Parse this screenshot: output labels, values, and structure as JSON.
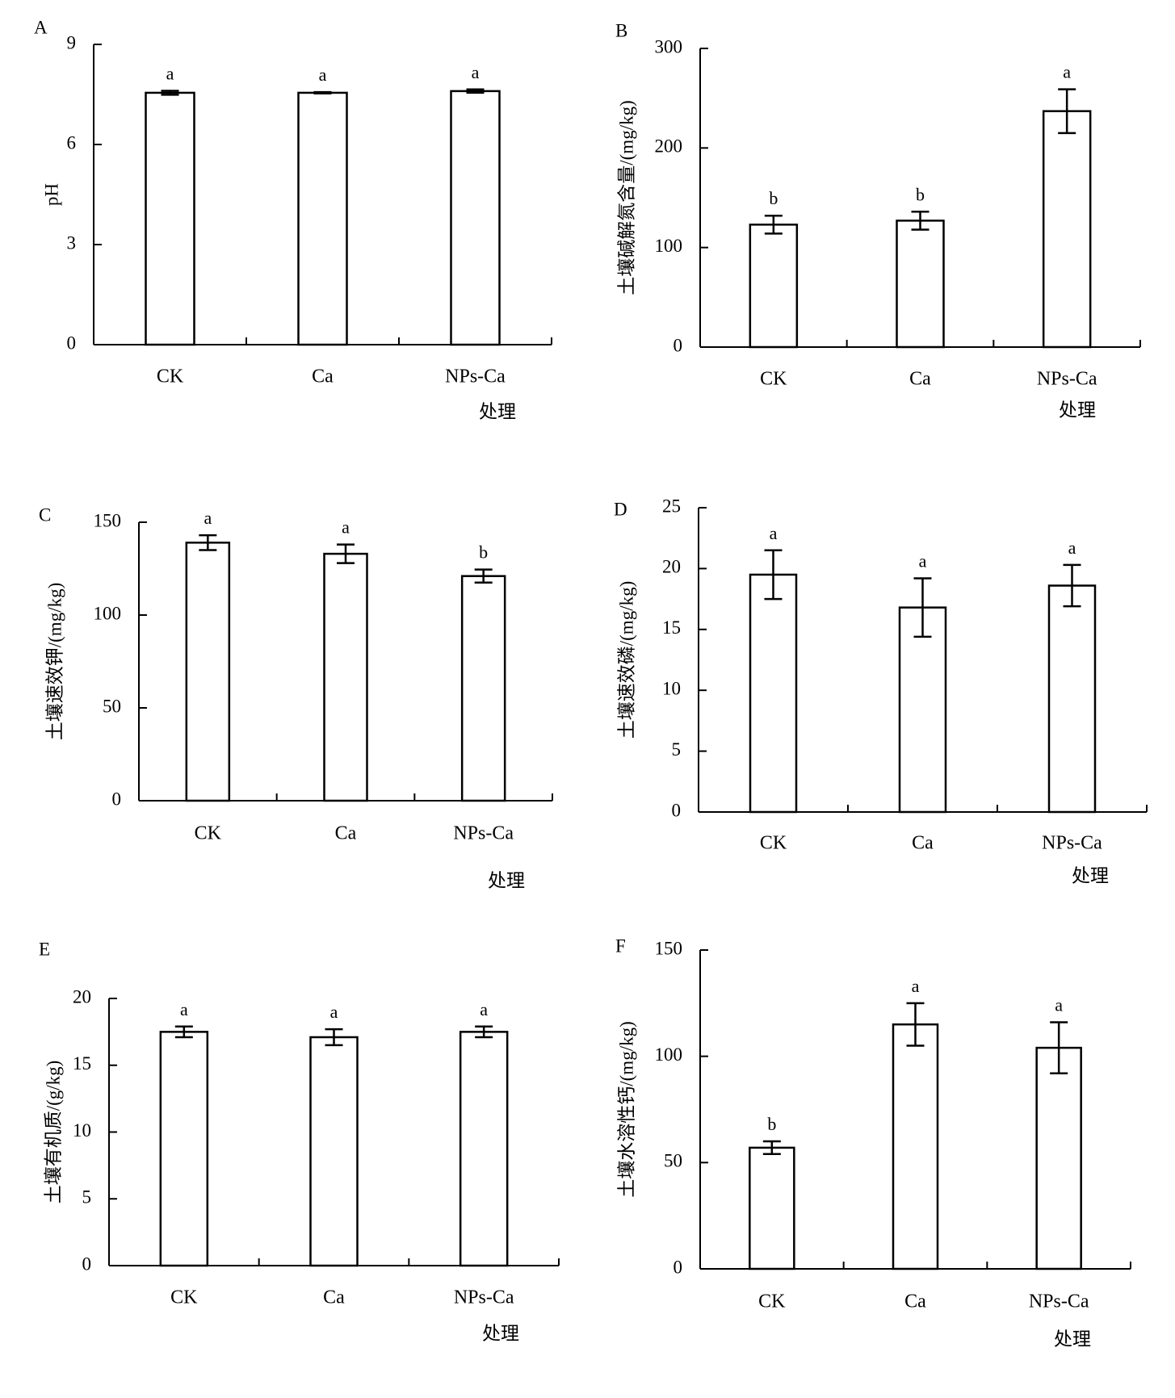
{
  "chart_data": [
    {
      "panel": "A",
      "type": "bar",
      "categories": [
        "CK",
        "Ca",
        "NPs-Ca"
      ],
      "values": [
        7.55,
        7.55,
        7.6
      ],
      "errors": [
        0.06,
        0.02,
        0.05
      ],
      "significance": [
        "a",
        "a",
        "a"
      ],
      "ylabel": "pH",
      "xlabel": "处理",
      "ylim": [
        0,
        9
      ],
      "yticks": [
        0,
        3,
        6,
        9
      ]
    },
    {
      "panel": "B",
      "type": "bar",
      "categories": [
        "CK",
        "Ca",
        "NPs-Ca"
      ],
      "values": [
        123,
        127,
        237
      ],
      "errors": [
        9,
        9,
        22
      ],
      "significance": [
        "b",
        "b",
        "a"
      ],
      "ylabel": "土壤碱解氮含量/(mg/kg)",
      "xlabel": "处理",
      "ylim": [
        0,
        300
      ],
      "yticks": [
        0,
        100,
        200,
        300
      ]
    },
    {
      "panel": "C",
      "type": "bar",
      "categories": [
        "CK",
        "Ca",
        "NPs-Ca"
      ],
      "values": [
        139,
        133,
        121
      ],
      "errors": [
        4,
        5,
        3.5
      ],
      "significance": [
        "a",
        "a",
        "b"
      ],
      "ylabel": "土壤速效钾/(mg/kg)",
      "xlabel": "处理",
      "ylim": [
        0,
        150
      ],
      "yticks": [
        0,
        50,
        100,
        150
      ]
    },
    {
      "panel": "D",
      "type": "bar",
      "categories": [
        "CK",
        "Ca",
        "NPs-Ca"
      ],
      "values": [
        19.5,
        16.8,
        18.6
      ],
      "errors": [
        2.0,
        2.4,
        1.7
      ],
      "significance": [
        "a",
        "a",
        "a"
      ],
      "ylabel": "土壤速效磷/(mg/kg)",
      "xlabel": "处理",
      "ylim": [
        0,
        25
      ],
      "yticks": [
        0,
        5,
        10,
        15,
        20,
        25
      ]
    },
    {
      "panel": "E",
      "type": "bar",
      "categories": [
        "CK",
        "Ca",
        "NPs-Ca"
      ],
      "values": [
        17.5,
        17.1,
        17.5
      ],
      "errors": [
        0.4,
        0.6,
        0.4
      ],
      "significance": [
        "a",
        "a",
        "a"
      ],
      "ylabel": "土壤有机质/(g/kg)",
      "xlabel": "处理",
      "ylim": [
        0,
        20
      ],
      "yticks": [
        0,
        5,
        10,
        15,
        20
      ]
    },
    {
      "panel": "F",
      "type": "bar",
      "categories": [
        "CK",
        "Ca",
        "NPs-Ca"
      ],
      "values": [
        57,
        115,
        104
      ],
      "errors": [
        3,
        10,
        12
      ],
      "significance": [
        "b",
        "a",
        "a"
      ],
      "ylabel": "土壤水溶性钙/(mg/kg)",
      "xlabel": "处理",
      "ylim": [
        0,
        150
      ],
      "yticks": [
        0,
        50,
        100,
        150
      ]
    }
  ]
}
